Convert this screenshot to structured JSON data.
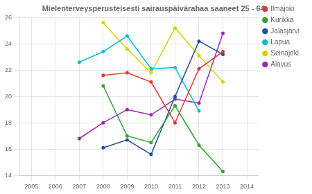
{
  "chart_data": {
    "type": "line",
    "title": "Mielenterveysperusteisesti sairauspäivärahaa saaneet 25 - 64-",
    "x": [
      2007,
      2008,
      2009,
      2010,
      2011,
      2012,
      2013
    ],
    "series": [
      {
        "name": "Ilmajoki",
        "color": "#e0392b",
        "values": [
          null,
          21.6,
          21.8,
          21.1,
          18.0,
          22.1,
          23.4
        ]
      },
      {
        "name": "Kurikka",
        "color": "#33a02c",
        "values": [
          null,
          20.8,
          17.0,
          16.5,
          19.3,
          16.3,
          14.3
        ]
      },
      {
        "name": "Jalasjärvi",
        "color": "#1f4e9e",
        "values": [
          null,
          16.1,
          16.7,
          15.6,
          20.0,
          24.2,
          23.2
        ]
      },
      {
        "name": "Lapua",
        "color": "#00bcd4",
        "values": [
          22.6,
          23.4,
          24.6,
          22.1,
          22.2,
          18.9,
          null
        ]
      },
      {
        "name": "Seinäjoki",
        "color": "#d4d400",
        "values": [
          null,
          25.6,
          23.6,
          21.8,
          25.2,
          23.1,
          21.1
        ]
      },
      {
        "name": "Alavus",
        "color": "#9c27b0",
        "values": [
          16.8,
          18.0,
          19.0,
          18.6,
          19.8,
          19.5,
          24.8
        ]
      }
    ],
    "xlim": [
      2004.5,
      2014.5
    ],
    "xticks": [
      2005,
      2006,
      2007,
      2008,
      2009,
      2010,
      2011,
      2012,
      2013,
      2014
    ],
    "ylim": [
      14,
      26
    ],
    "yticks": [
      14,
      16,
      18,
      20,
      22,
      24,
      26
    ],
    "grid": true,
    "legend": "upper right",
    "marker": "circle"
  }
}
